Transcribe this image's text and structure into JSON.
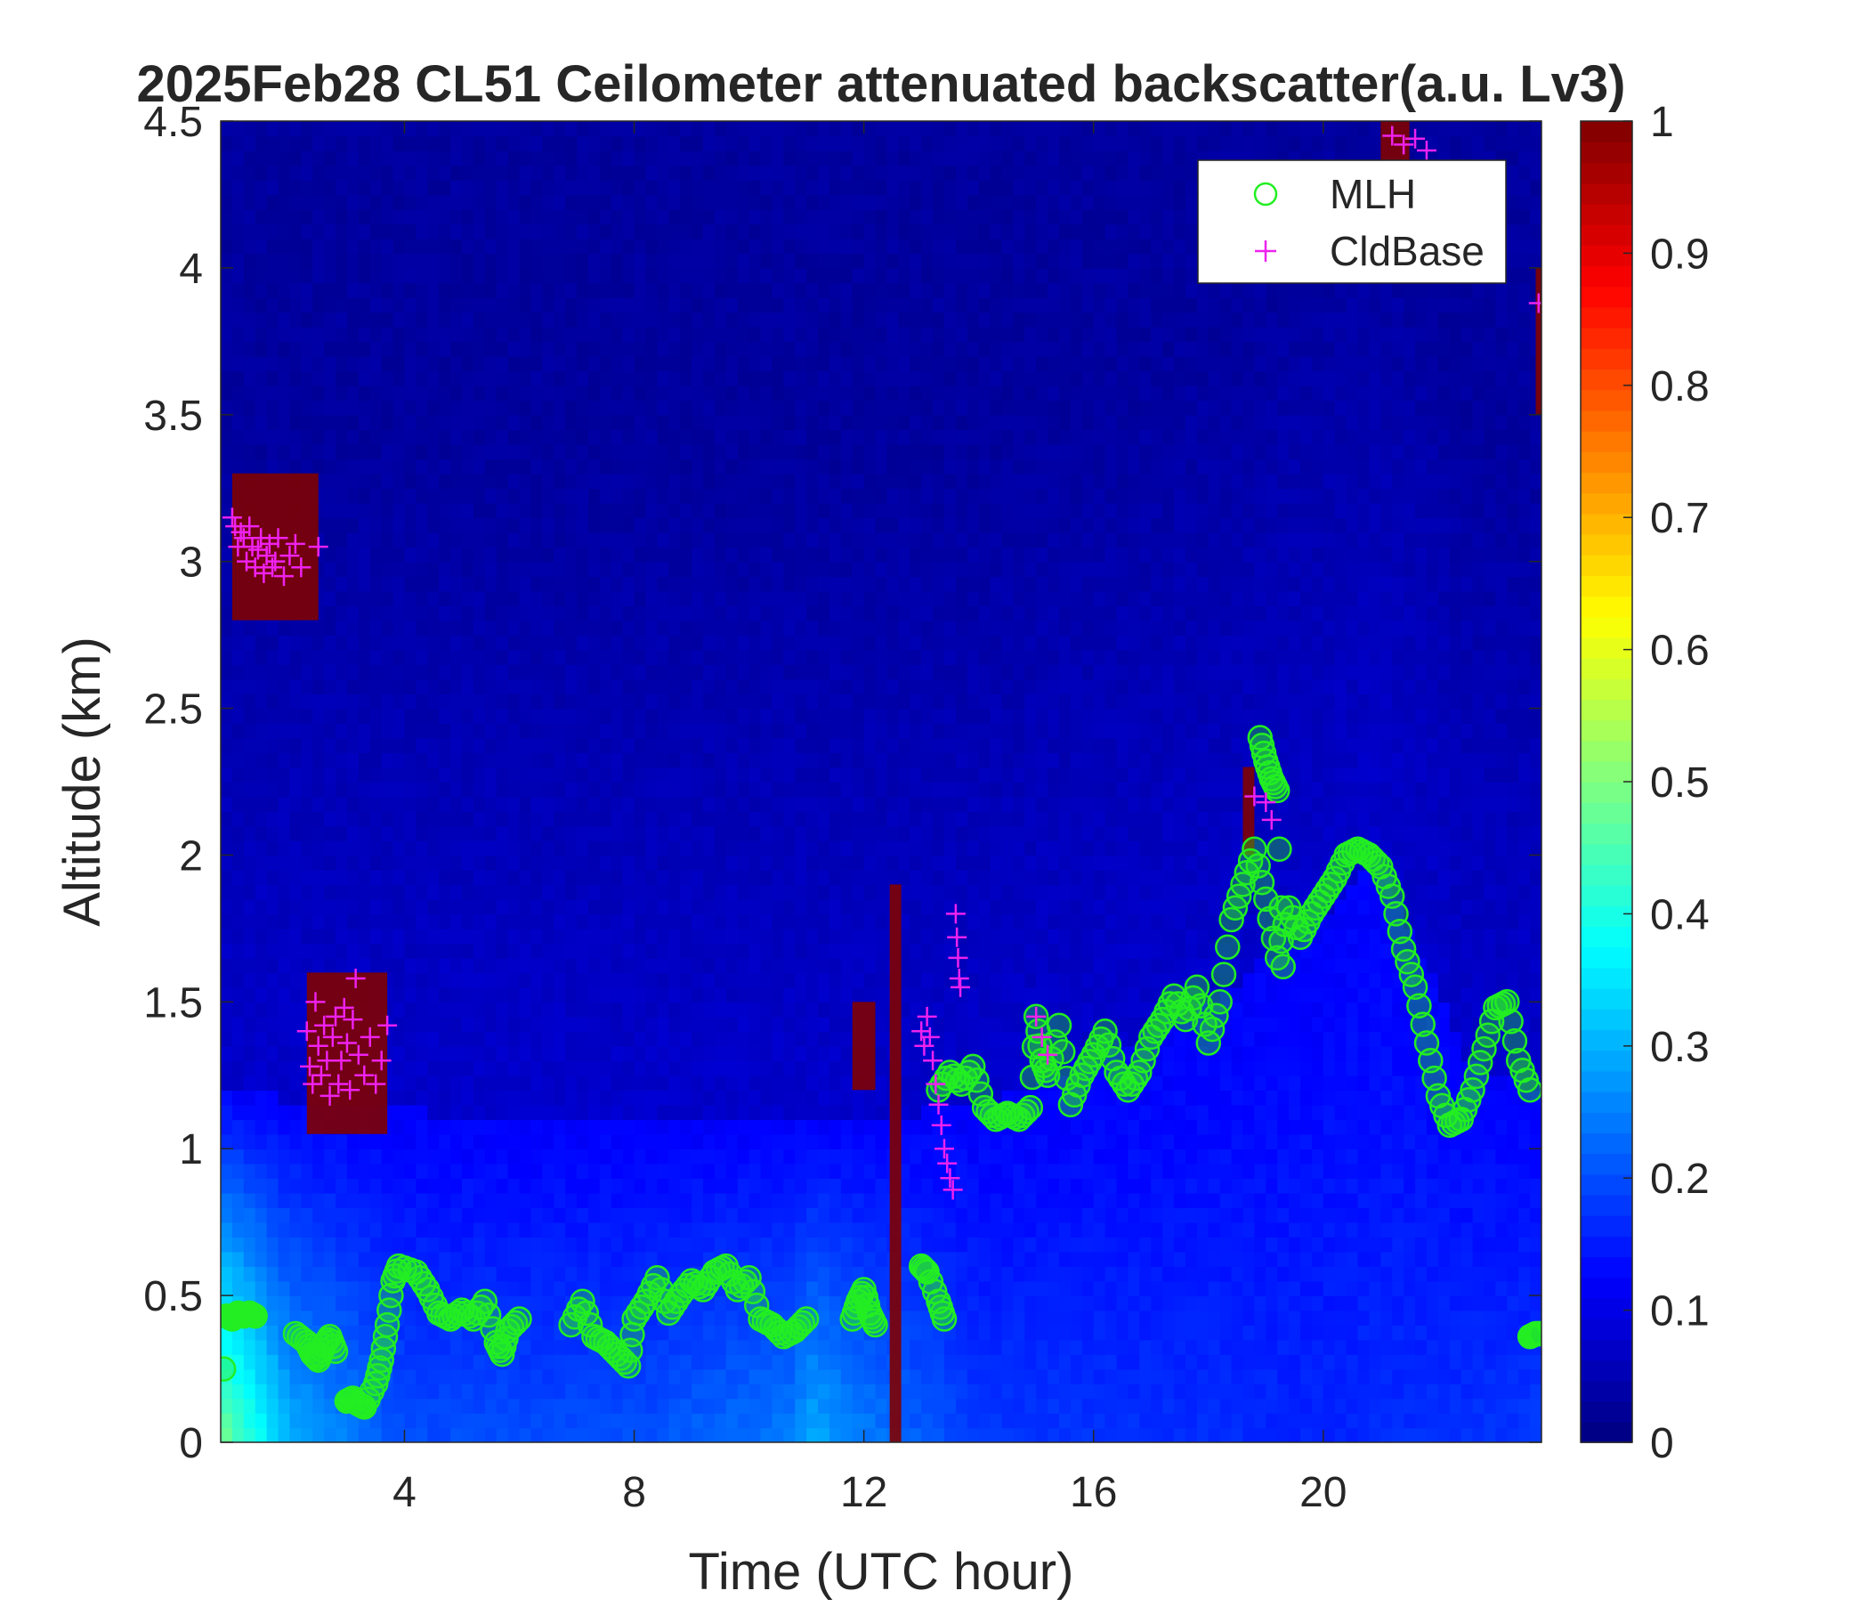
{
  "chart_data": {
    "type": "heatmap",
    "title": "2025Feb28 CL51 Ceilometer attenuated backscatter(a.u. Lv3)",
    "xlabel": "Time (UTC hour)",
    "ylabel": "Altitude (km)",
    "xlim": [
      0.8,
      23.8
    ],
    "ylim": [
      0,
      4.5
    ],
    "x_ticks": [
      "4",
      "8",
      "12",
      "16",
      "20"
    ],
    "y_ticks": [
      "0",
      "0.5",
      "1",
      "1.5",
      "2",
      "2.5",
      "3",
      "3.5",
      "4",
      "4.5"
    ],
    "colorbar": {
      "colormap": "jet",
      "range": [
        0,
        1
      ],
      "ticks": [
        "0",
        "0.1",
        "0.2",
        "0.3",
        "0.4",
        "0.5",
        "0.6",
        "0.7",
        "0.8",
        "0.9",
        "1"
      ]
    },
    "legend": {
      "position": "top-right",
      "entries": [
        {
          "label": "MLH",
          "marker": "circle",
          "color": "#22ee22"
        },
        {
          "label": "CldBase",
          "marker": "plus",
          "color": "#ee22ee"
        }
      ]
    },
    "background_field": {
      "low_level_layer_top_km": [
        [
          0.8,
          1.2
        ],
        [
          3,
          1.15
        ],
        [
          6,
          1.1
        ],
        [
          8,
          1.1
        ],
        [
          10,
          1.1
        ],
        [
          12,
          1.1
        ],
        [
          14,
          1.15
        ],
        [
          16,
          1.3
        ],
        [
          18,
          1.5
        ],
        [
          20,
          1.8
        ],
        [
          21,
          2.0
        ],
        [
          22.5,
          1.3
        ],
        [
          23.8,
          1.2
        ]
      ],
      "surface_intensity": [
        [
          0.8,
          0.5
        ],
        [
          2,
          0.3
        ],
        [
          4,
          0.2
        ],
        [
          8,
          0.2
        ],
        [
          10.8,
          0.25
        ],
        [
          11,
          0.3
        ],
        [
          12,
          0.25
        ],
        [
          14,
          0.18
        ],
        [
          20,
          0.16
        ],
        [
          23.8,
          0.18
        ]
      ],
      "cloud_patches": [
        {
          "x0": 1.0,
          "x1": 2.5,
          "y0": 2.8,
          "y1": 3.3,
          "value": 1.0
        },
        {
          "x0": 2.3,
          "x1": 3.7,
          "y0": 1.05,
          "y1": 1.6,
          "value": 1.0
        },
        {
          "x0": 11.8,
          "x1": 12.2,
          "y0": 1.2,
          "y1": 1.5,
          "value": 1.0
        },
        {
          "x0": 12.45,
          "x1": 12.65,
          "y0": 0.0,
          "y1": 1.9,
          "value": 1.0
        },
        {
          "x0": 18.6,
          "x1": 18.8,
          "y0": 2.0,
          "y1": 2.3,
          "value": 1.0
        },
        {
          "x0": 21.0,
          "x1": 21.5,
          "y0": 4.35,
          "y1": 4.5,
          "value": 1.0
        },
        {
          "x0": 23.7,
          "x1": 23.8,
          "y0": 3.5,
          "y1": 4.0,
          "value": 1.0
        }
      ]
    },
    "series": [
      {
        "name": "MLH",
        "marker": "circle",
        "segments": [
          [
            [
              0.85,
              0.25
            ]
          ],
          [
            [
              0.9,
              0.43
            ],
            [
              1.0,
              0.42
            ],
            [
              1.1,
              0.44
            ],
            [
              1.2,
              0.43
            ],
            [
              1.3,
              0.44
            ],
            [
              1.4,
              0.43
            ]
          ],
          [
            [
              2.1,
              0.37
            ],
            [
              2.3,
              0.34
            ],
            [
              2.4,
              0.3
            ],
            [
              2.5,
              0.28
            ],
            [
              2.6,
              0.33
            ],
            [
              2.7,
              0.36
            ],
            [
              2.8,
              0.31
            ]
          ],
          [
            [
              3.0,
              0.14
            ],
            [
              3.1,
              0.15
            ],
            [
              3.2,
              0.13
            ],
            [
              3.3,
              0.12
            ],
            [
              3.5,
              0.2
            ],
            [
              3.6,
              0.28
            ],
            [
              3.7,
              0.4
            ],
            [
              3.8,
              0.55
            ],
            [
              3.9,
              0.6
            ],
            [
              4.2,
              0.58
            ],
            [
              4.4,
              0.52
            ],
            [
              4.6,
              0.44
            ],
            [
              4.8,
              0.42
            ],
            [
              5.0,
              0.45
            ],
            [
              5.2,
              0.42
            ],
            [
              5.4,
              0.48
            ],
            [
              5.6,
              0.34
            ],
            [
              5.7,
              0.3
            ],
            [
              5.8,
              0.38
            ],
            [
              6.0,
              0.42
            ]
          ],
          [
            [
              6.9,
              0.4
            ],
            [
              7.1,
              0.48
            ],
            [
              7.3,
              0.36
            ],
            [
              7.5,
              0.34
            ],
            [
              7.7,
              0.3
            ],
            [
              7.9,
              0.26
            ],
            [
              8.0,
              0.42
            ],
            [
              8.2,
              0.48
            ],
            [
              8.4,
              0.56
            ],
            [
              8.6,
              0.44
            ],
            [
              8.8,
              0.5
            ],
            [
              9.0,
              0.55
            ],
            [
              9.2,
              0.52
            ],
            [
              9.4,
              0.58
            ],
            [
              9.6,
              0.6
            ],
            [
              9.8,
              0.52
            ],
            [
              10.0,
              0.56
            ],
            [
              10.2,
              0.42
            ],
            [
              10.4,
              0.4
            ],
            [
              10.6,
              0.36
            ],
            [
              10.8,
              0.38
            ],
            [
              11.0,
              0.42
            ]
          ],
          [
            [
              11.8,
              0.42
            ],
            [
              11.9,
              0.48
            ],
            [
              12.0,
              0.52
            ],
            [
              12.1,
              0.44
            ],
            [
              12.2,
              0.4
            ]
          ],
          [
            [
              13.0,
              0.6
            ],
            [
              13.1,
              0.58
            ],
            [
              13.3,
              0.48
            ],
            [
              13.4,
              0.42
            ]
          ],
          [
            [
              13.3,
              1.2
            ],
            [
              13.5,
              1.26
            ],
            [
              13.7,
              1.22
            ],
            [
              13.9,
              1.28
            ],
            [
              14.1,
              1.14
            ],
            [
              14.3,
              1.1
            ],
            [
              14.5,
              1.12
            ],
            [
              14.7,
              1.1
            ],
            [
              14.9,
              1.14
            ],
            [
              15.0,
              1.45
            ],
            [
              15.1,
              1.3
            ],
            [
              15.2,
              1.25
            ],
            [
              15.4,
              1.42
            ],
            [
              15.6,
              1.15
            ],
            [
              15.8,
              1.25
            ],
            [
              16.0,
              1.32
            ],
            [
              16.2,
              1.4
            ],
            [
              16.4,
              1.26
            ],
            [
              16.6,
              1.2
            ],
            [
              16.8,
              1.26
            ],
            [
              17.0,
              1.38
            ],
            [
              17.2,
              1.44
            ],
            [
              17.4,
              1.52
            ],
            [
              17.6,
              1.44
            ],
            [
              17.8,
              1.55
            ],
            [
              18.0,
              1.36
            ],
            [
              18.2,
              1.5
            ],
            [
              18.4,
              1.78
            ],
            [
              18.6,
              1.9
            ],
            [
              18.8,
              2.02
            ],
            [
              19.0,
              1.85
            ],
            [
              19.2,
              1.65
            ],
            [
              19.4,
              1.82
            ],
            [
              19.6,
              1.72
            ],
            [
              19.8,
              1.8
            ],
            [
              20.0,
              1.86
            ],
            [
              20.2,
              1.92
            ],
            [
              20.4,
              2.0
            ],
            [
              20.6,
              2.02
            ],
            [
              20.8,
              2.0
            ],
            [
              21.0,
              1.96
            ],
            [
              21.2,
              1.86
            ],
            [
              21.4,
              1.68
            ],
            [
              21.6,
              1.55
            ],
            [
              21.8,
              1.36
            ],
            [
              22.0,
              1.18
            ],
            [
              22.2,
              1.08
            ],
            [
              22.4,
              1.1
            ],
            [
              22.6,
              1.2
            ],
            [
              22.8,
              1.34
            ],
            [
              23.0,
              1.48
            ],
            [
              23.2,
              1.5
            ],
            [
              23.4,
              1.3
            ],
            [
              23.6,
              1.2
            ]
          ],
          [
            [
              18.9,
              2.4
            ],
            [
              19.0,
              2.32
            ],
            [
              19.1,
              2.26
            ],
            [
              19.2,
              2.22
            ],
            [
              19.3,
              1.62
            ]
          ],
          [
            [
              23.6,
              0.36
            ],
            [
              23.7,
              0.37
            ],
            [
              23.8,
              0.37
            ]
          ]
        ]
      },
      {
        "name": "CldBase",
        "marker": "plus",
        "points": [
          [
            1.0,
            3.15
          ],
          [
            1.05,
            3.12
          ],
          [
            1.1,
            3.05
          ],
          [
            1.15,
            3.1
          ],
          [
            1.2,
            3.08
          ],
          [
            1.25,
            3.0
          ],
          [
            1.3,
            3.12
          ],
          [
            1.35,
            3.05
          ],
          [
            1.4,
            2.98
          ],
          [
            1.45,
            3.04
          ],
          [
            1.5,
            3.08
          ],
          [
            1.55,
            2.96
          ],
          [
            1.6,
            3.02
          ],
          [
            1.65,
            3.06
          ],
          [
            1.7,
            2.98
          ],
          [
            1.75,
            3.0
          ],
          [
            1.8,
            3.08
          ],
          [
            1.9,
            2.95
          ],
          [
            2.0,
            3.02
          ],
          [
            2.1,
            3.06
          ],
          [
            2.2,
            2.98
          ],
          [
            2.5,
            3.05
          ],
          [
            2.3,
            1.4
          ],
          [
            2.35,
            1.28
          ],
          [
            2.4,
            1.22
          ],
          [
            2.45,
            1.5
          ],
          [
            2.5,
            1.35
          ],
          [
            2.55,
            1.25
          ],
          [
            2.6,
            1.42
          ],
          [
            2.65,
            1.3
          ],
          [
            2.7,
            1.18
          ],
          [
            2.75,
            1.38
          ],
          [
            2.8,
            1.45
          ],
          [
            2.85,
            1.22
          ],
          [
            2.9,
            1.3
          ],
          [
            2.95,
            1.48
          ],
          [
            3.0,
            1.36
          ],
          [
            3.05,
            1.2
          ],
          [
            3.1,
            1.44
          ],
          [
            3.15,
            1.58
          ],
          [
            3.2,
            1.32
          ],
          [
            3.3,
            1.25
          ],
          [
            3.4,
            1.38
          ],
          [
            3.5,
            1.22
          ],
          [
            3.6,
            1.3
          ],
          [
            3.7,
            1.42
          ],
          [
            13.0,
            1.4
          ],
          [
            13.05,
            1.35
          ],
          [
            13.1,
            1.45
          ],
          [
            13.15,
            1.38
          ],
          [
            13.2,
            1.3
          ],
          [
            13.25,
            1.22
          ],
          [
            13.3,
            1.15
          ],
          [
            13.35,
            1.08
          ],
          [
            13.4,
            1.0
          ],
          [
            13.45,
            0.95
          ],
          [
            13.5,
            0.9
          ],
          [
            13.55,
            0.86
          ],
          [
            13.6,
            1.8
          ],
          [
            13.62,
            1.72
          ],
          [
            13.64,
            1.65
          ],
          [
            13.66,
            1.58
          ],
          [
            13.68,
            1.55
          ],
          [
            15.0,
            1.45
          ],
          [
            15.1,
            1.38
          ],
          [
            15.2,
            1.32
          ],
          [
            18.8,
            2.2
          ],
          [
            19.0,
            2.18
          ],
          [
            19.1,
            2.12
          ],
          [
            21.2,
            4.45
          ],
          [
            21.4,
            4.42
          ],
          [
            21.6,
            4.44
          ],
          [
            21.8,
            4.4
          ],
          [
            23.75,
            3.88
          ]
        ]
      }
    ]
  }
}
